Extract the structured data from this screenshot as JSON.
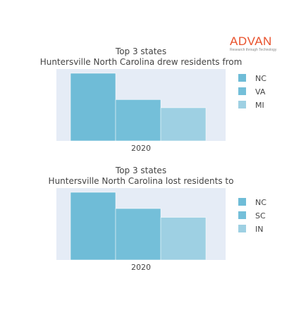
{
  "logo": {
    "text": "ADVAN",
    "tagline": "Research through Technology"
  },
  "chart_data": [
    {
      "type": "bar",
      "title_line1": "Top 3 states",
      "title_line2": "Huntersville North Carolina drew residents from",
      "categories": [
        "2020"
      ],
      "series": [
        {
          "name": "NC",
          "values": [
            100
          ],
          "color": "#6fbcd7"
        },
        {
          "name": "VA",
          "values": [
            61
          ],
          "color": "#74bfd9"
        },
        {
          "name": "MI",
          "values": [
            49
          ],
          "color": "#9ed0e3"
        }
      ],
      "ylim": [
        0,
        100
      ],
      "grid": false,
      "legend": "right"
    },
    {
      "type": "bar",
      "title_line1": "Top 3 states",
      "title_line2": "Huntersville North Carolina lost residents to",
      "categories": [
        "2020"
      ],
      "series": [
        {
          "name": "NC",
          "values": [
            100
          ],
          "color": "#6fbcd7"
        },
        {
          "name": "SC",
          "values": [
            76
          ],
          "color": "#74bfd9"
        },
        {
          "name": "IN",
          "values": [
            63
          ],
          "color": "#9ed0e3"
        }
      ],
      "ylim": [
        0,
        100
      ],
      "grid": false,
      "legend": "right"
    }
  ]
}
